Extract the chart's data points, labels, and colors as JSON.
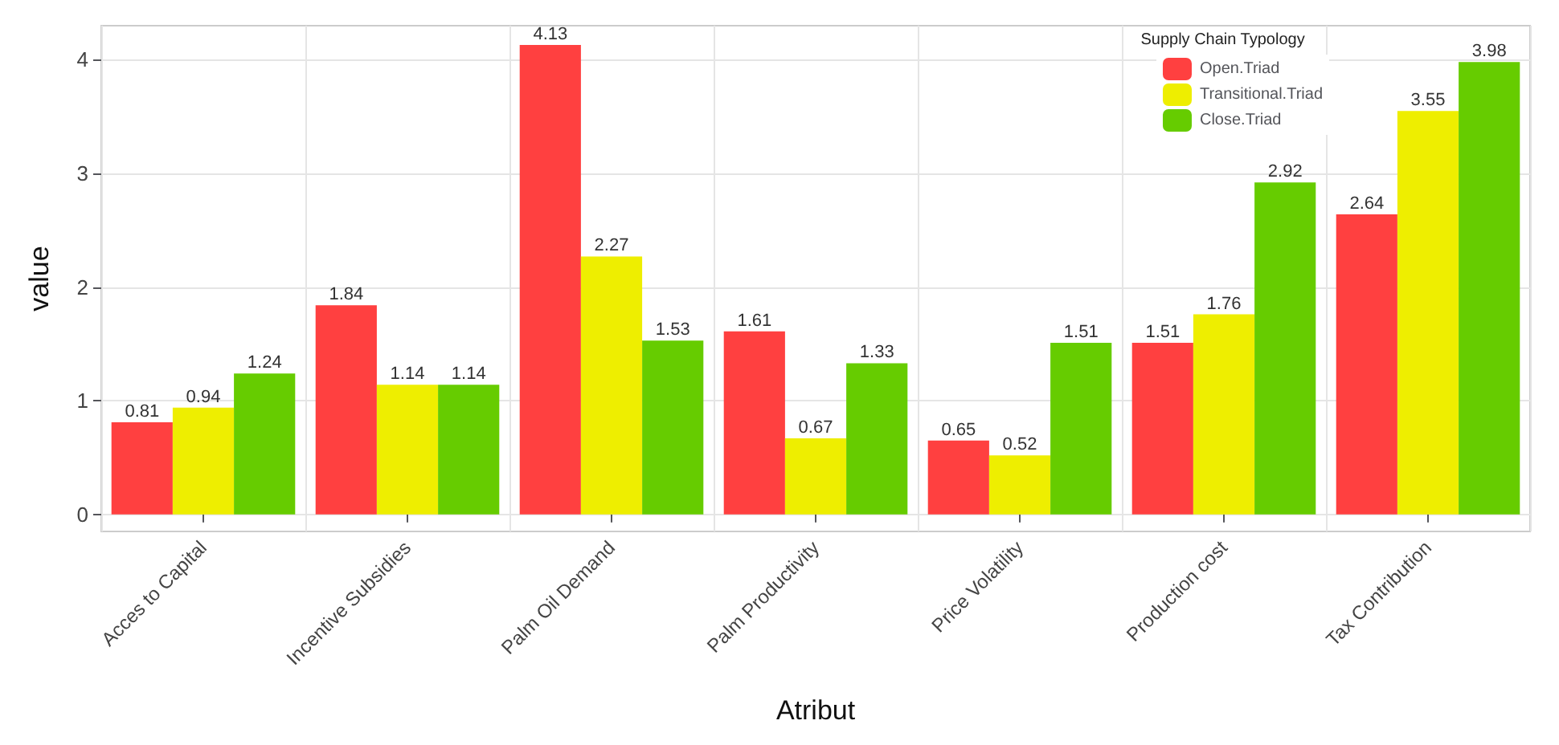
{
  "chart_data": {
    "type": "bar",
    "xlabel": "Atribut",
    "ylabel": "value",
    "legend_title": "Supply Chain Typology",
    "legend": "top right",
    "grid": true,
    "data_labels": true,
    "categories": [
      "Acces to Capital",
      "Incentive Subsidies",
      "Palm Oil Demand",
      "Palm Productivity",
      "Price Volatility",
      "Production cost",
      "Tax Contribution"
    ],
    "ylim": [
      -0.15,
      4.3
    ],
    "yticks": [
      0,
      1,
      2,
      3,
      4
    ],
    "series": [
      {
        "name": "Open.Triad",
        "color": "#ff4040",
        "values": [
          0.81,
          1.84,
          4.13,
          1.61,
          0.65,
          1.51,
          2.64
        ]
      },
      {
        "name": "Transitional.Triad",
        "color": "#eeee00",
        "values": [
          0.94,
          1.14,
          2.27,
          0.67,
          0.52,
          1.76,
          3.55
        ]
      },
      {
        "name": "Close.Triad",
        "color": "#66cc00",
        "values": [
          1.24,
          1.14,
          1.53,
          1.33,
          1.51,
          2.92,
          3.98
        ]
      }
    ]
  }
}
